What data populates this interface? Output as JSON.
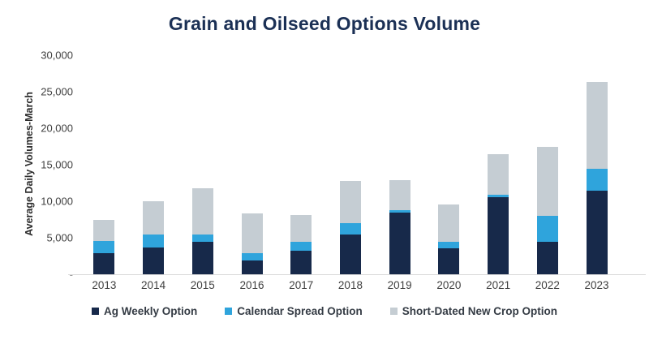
{
  "chart_data": {
    "type": "bar",
    "stacked": true,
    "title": "Grain and Oilseed Options Volume",
    "xlabel": "",
    "ylabel": "Average Daily Volumes-March",
    "categories": [
      "2013",
      "2014",
      "2015",
      "2016",
      "2017",
      "2018",
      "2019",
      "2020",
      "2021",
      "2022",
      "2023"
    ],
    "series": [
      {
        "name": "Ag Weekly Option",
        "color": "#17294a",
        "values": [
          2900,
          3700,
          4400,
          1900,
          3200,
          5400,
          8500,
          3600,
          10600,
          4500,
          11400
        ]
      },
      {
        "name": "Calendar Spread Option",
        "color": "#2fa4dc",
        "values": [
          1700,
          1700,
          1100,
          1000,
          1200,
          1600,
          300,
          900,
          300,
          3500,
          3000
        ]
      },
      {
        "name": "Short-Dated New Crop Option",
        "color": "#c5cdd3",
        "values": [
          2900,
          4600,
          6300,
          5400,
          3700,
          5800,
          4100,
          5100,
          5500,
          9400,
          11900
        ]
      }
    ],
    "stack_totals": [
      7500,
      10000,
      11800,
      8300,
      8100,
      12800,
      12900,
      9600,
      16400,
      17400,
      26300
    ],
    "ylim": [
      0,
      30000
    ],
    "yticks": [
      {
        "value": 30000,
        "label": "30,000"
      },
      {
        "value": 25000,
        "label": "25,000"
      },
      {
        "value": 20000,
        "label": "20,000"
      },
      {
        "value": 15000,
        "label": "15,000"
      },
      {
        "value": 10000,
        "label": "10,000"
      },
      {
        "value": 5000,
        "label": "5,000"
      },
      {
        "value": 0,
        "label": "-"
      }
    ],
    "grid": false,
    "legend_position": "bottom"
  },
  "colors": {
    "title_text": "#1b3055",
    "axis_text": "#404040",
    "ylabel_text": "#2d2d2d",
    "legend_text": "#343b44",
    "baseline": "#d9d9d9",
    "background": "#ffffff"
  }
}
